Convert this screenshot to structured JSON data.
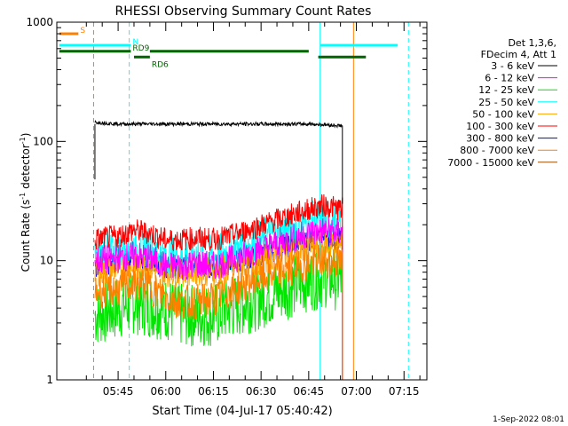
{
  "chart_data": {
    "type": "line",
    "title": "RHESSI Observing Summary Count Rates",
    "xlabel": "Start Time (04-Jul-17 05:40:42)",
    "ylabel_main": "Count Rate (s",
    "ylabel_sup1": "-1",
    "ylabel_mid": " detector",
    "ylabel_sup2": "-1",
    "ylabel_end": ")",
    "y_scale": "log",
    "ylim": [
      1,
      1000
    ],
    "xlim_minutes": [
      -19.3,
      97.2
    ],
    "x_tick_labels": [
      "05:45",
      "06:00",
      "06:15",
      "06:30",
      "06:45",
      "07:00",
      "07:15"
    ],
    "x_tick_minutes": [
      0,
      15,
      30,
      45,
      60,
      75,
      90
    ],
    "y_tick_labels": [
      "1",
      "10",
      "100",
      "1000"
    ],
    "y_tick_values": [
      1,
      10,
      100,
      1000
    ],
    "legend_header": [
      "Det 1,3,6,",
      "FDecim 4, Att 1"
    ],
    "legend_position": "right",
    "series": [
      {
        "name": "3 - 6 keV",
        "color": "#000000",
        "values": [
          145,
          140,
          140,
          140,
          140,
          140,
          140,
          140,
          140,
          140,
          140,
          138,
          135
        ]
      },
      {
        "name": "6 - 12 keV",
        "color": "#ff00ff",
        "values": [
          10,
          10.5,
          11,
          10.5,
          9,
          9,
          9.5,
          9,
          10,
          14,
          17,
          18,
          17
        ]
      },
      {
        "name": "12 - 25 keV",
        "color": "#00e600",
        "values": [
          3.5,
          4,
          4.5,
          4.2,
          4,
          3.5,
          3.5,
          3.5,
          4,
          5.5,
          7,
          7.5,
          7
        ]
      },
      {
        "name": "25 - 50 keV",
        "color": "#00ffff",
        "values": [
          11,
          12,
          13,
          12.5,
          11,
          11,
          11.5,
          11,
          12,
          17,
          21,
          22,
          21
        ]
      },
      {
        "name": "50 - 100 keV",
        "color": "#ffa500",
        "values": [
          8,
          8.5,
          9,
          8.8,
          8,
          8,
          8.2,
          8,
          8.5,
          11,
          13,
          13.5,
          13
        ]
      },
      {
        "name": "100 - 300 keV",
        "color": "#ff0000",
        "values": [
          15,
          16,
          18,
          17,
          15,
          15,
          15.5,
          15,
          16,
          22,
          27,
          29,
          27
        ]
      },
      {
        "name": "300 - 800 keV",
        "color": "#0000ff",
        "values": [
          9,
          9.5,
          10.5,
          10,
          8.5,
          8.5,
          9,
          8.5,
          9.5,
          12.5,
          15,
          16,
          15
        ]
      },
      {
        "name": "800 - 7000 keV",
        "color": "#ff8000",
        "values": [
          5.5,
          5.8,
          6.5,
          6,
          5,
          4.5,
          4.5,
          4.8,
          5.5,
          8,
          9.5,
          10,
          9.5
        ]
      },
      {
        "name": "7000 - 15000 keV",
        "color": "#994d00",
        "values": []
      }
    ],
    "series_x_minutes": [
      -7.3,
      0,
      5,
      10,
      15,
      20,
      25,
      30,
      35,
      50,
      60,
      65,
      70.6
    ],
    "vertical_lines": [
      {
        "minute": -7.7,
        "color": "#ff8000",
        "style": "dashed"
      },
      {
        "minute": 3.5,
        "color": "#00ffff",
        "style": "dashed"
      },
      {
        "minute": 63.6,
        "color": "#00ffff",
        "style": "solid"
      },
      {
        "minute": 74.1,
        "color": "#ff8000",
        "style": "solid"
      },
      {
        "minute": 91.4,
        "color": "#00ffff",
        "style": "dashed"
      }
    ],
    "flag_bars": [
      {
        "label": "S",
        "color": "#ff8000",
        "minutes": [
          -18.5,
          -12.5
        ],
        "level": 800
      },
      {
        "label": "N",
        "color": "#00ffff",
        "minutes": [
          -18.5,
          4,
          63.6,
          88
        ],
        "level": 640
      },
      {
        "label": "RD9",
        "color": "#006400",
        "minutes": [
          -18.5,
          4,
          10,
          60
        ],
        "level": 570
      },
      {
        "label": "RD6",
        "color": "#006400",
        "minutes": [
          5,
          10,
          63,
          78
        ],
        "level": 510
      }
    ],
    "footer_date": "1-Sep-2022 08:01"
  }
}
